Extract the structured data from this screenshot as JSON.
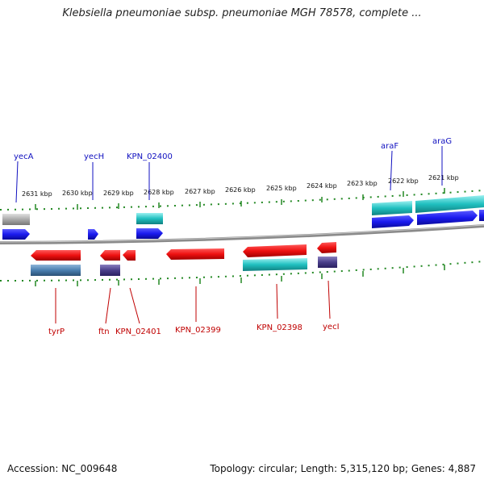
{
  "title": "Klebsiella pneumoniae subsp. pneumoniae MGH 78578, complete ...",
  "footer": {
    "accession": "Accession: NC_009648",
    "summary": "Topology: circular; Length: 5,315,120 bp; Genes: 4,887"
  },
  "ruler_labels": [
    "2631 kbp",
    "2630 kbp",
    "2629 kbp",
    "2628 kbp",
    "2627 kbp",
    "2626 kbp",
    "2625 kbp",
    "2624 kbp",
    "2623 kbp",
    "2622 kbp",
    "2621 kbp"
  ],
  "genes_top": [
    {
      "name": "yecA",
      "color": "#1010c0"
    },
    {
      "name": "yecH",
      "color": "#1010c0"
    },
    {
      "name": "KPN_02400",
      "color": "#1010c0"
    },
    {
      "name": "araF",
      "color": "#1010c0"
    },
    {
      "name": "araG",
      "color": "#1010c0"
    }
  ],
  "genes_bottom": [
    {
      "name": "tyrP",
      "color": "#c00000"
    },
    {
      "name": "ftn",
      "color": "#c00000"
    },
    {
      "name": "KPN_02401",
      "color": "#c00000"
    },
    {
      "name": "KPN_02399",
      "color": "#c00000"
    },
    {
      "name": "KPN_02398",
      "color": "#c00000"
    },
    {
      "name": "yecI",
      "color": "#c00000"
    }
  ],
  "colors": {
    "forward_gene": "#1a1aee",
    "reverse_gene": "#ee1111",
    "feature_cyan": "#20c0c0",
    "feature_purple": "#4a3f8a",
    "feature_steel": "#4a7fb0",
    "feature_gray": "#aaaaaa",
    "backbone": "#888888",
    "ticks": "#228822"
  }
}
